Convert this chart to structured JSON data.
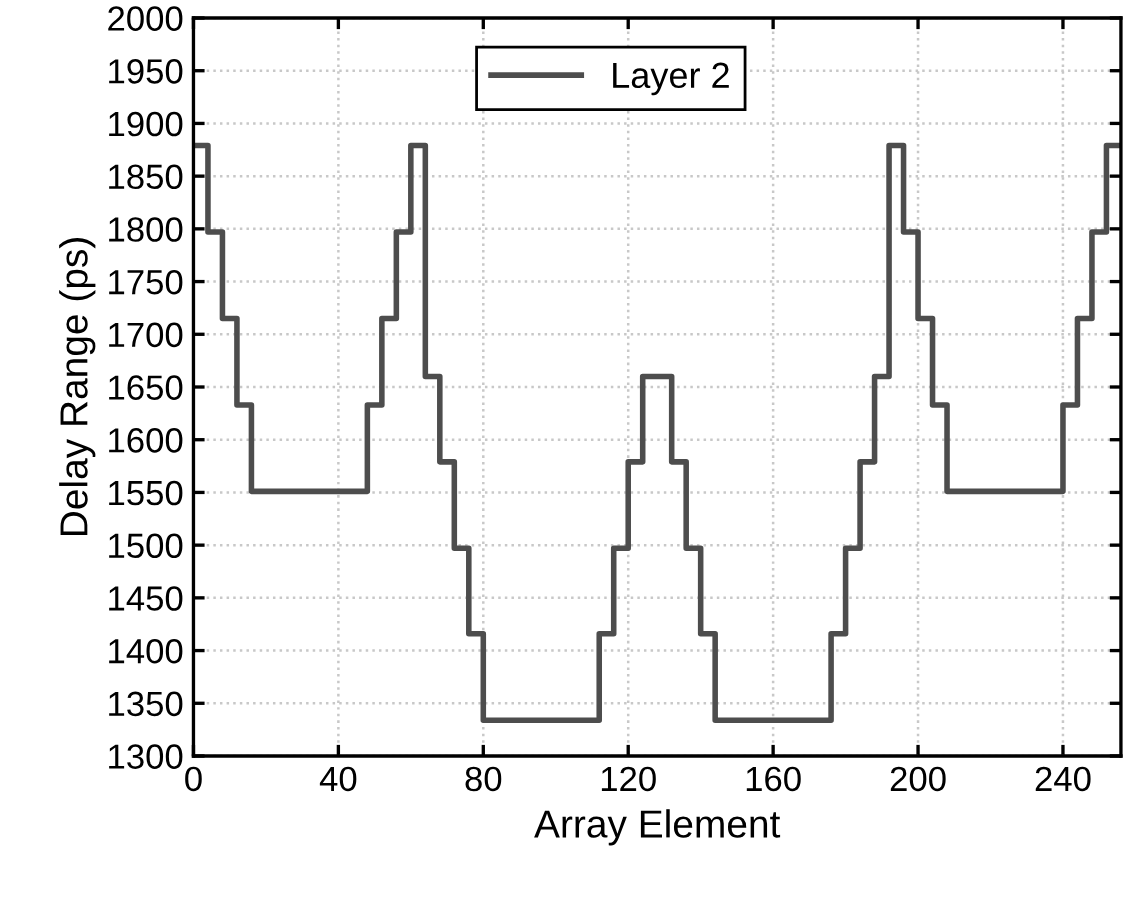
{
  "chart_data": {
    "type": "step",
    "xlabel": "Array Element",
    "ylabel": "Delay Range (ps)",
    "series": [
      {
        "name": "Layer 2",
        "color": "#4d4d4d",
        "x": [
          0,
          4,
          8,
          12,
          16,
          48,
          52,
          56,
          60,
          64,
          68,
          72,
          76,
          80,
          112,
          116,
          120,
          124,
          132,
          136,
          140,
          144,
          176,
          180,
          184,
          188,
          192,
          196,
          200,
          204,
          208,
          240,
          244,
          248,
          252,
          256
        ],
        "values": [
          1879,
          1797,
          1715,
          1633,
          1551,
          1633,
          1715,
          1797,
          1879,
          1660,
          1579,
          1497,
          1416,
          1334,
          1416,
          1497,
          1579,
          1660,
          1579,
          1497,
          1416,
          1334,
          1416,
          1497,
          1579,
          1660,
          1879,
          1797,
          1715,
          1633,
          1551,
          1633,
          1715,
          1797,
          1879,
          1879
        ]
      }
    ],
    "xlim": [
      0,
      256
    ],
    "xticks": [
      0,
      40,
      80,
      120,
      160,
      200,
      240
    ],
    "ylim": [
      1300,
      2000
    ],
    "yticks": [
      1300,
      1350,
      1400,
      1450,
      1500,
      1550,
      1600,
      1650,
      1700,
      1750,
      1800,
      1850,
      1900,
      1950,
      2000
    ],
    "grid": true,
    "legend": "top",
    "line_style": "solid",
    "marker": "none"
  }
}
